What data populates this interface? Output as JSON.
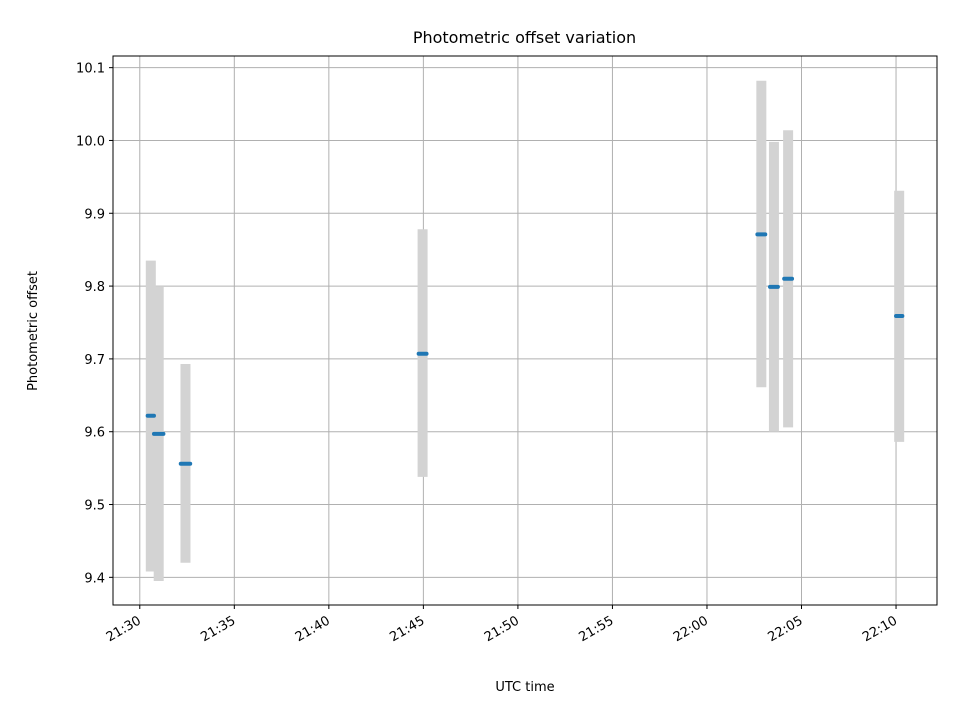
{
  "chart_data": {
    "type": "scatter",
    "title": "Photometric offset variation",
    "xlabel": "UTC time",
    "ylabel": "Photometric offset",
    "x_ticks": [
      "21:30",
      "21:35",
      "21:40",
      "21:45",
      "21:50",
      "21:55",
      "22:00",
      "22:05",
      "22:10"
    ],
    "y_ticks": [
      "9.4",
      "9.5",
      "9.6",
      "9.7",
      "9.8",
      "9.9",
      "10.0",
      "10.1"
    ],
    "xlim": [
      "21:28:35",
      "22:12:10"
    ],
    "ylim": [
      9.362,
      10.116
    ],
    "grid": true,
    "series": [
      {
        "color": "#1f77b4",
        "error_bar_color": "#d3d3d3",
        "points": [
          {
            "t_start": "21:30:25",
            "t_end": "21:30:45",
            "y": 9.622,
            "ylow": 9.408,
            "yhigh": 9.835
          },
          {
            "t_start": "21:30:45",
            "t_end": "21:31:15",
            "y": 9.597,
            "ylow": 9.395,
            "yhigh": 9.8
          },
          {
            "t_start": "21:32:10",
            "t_end": "21:32:40",
            "y": 9.556,
            "ylow": 9.42,
            "yhigh": 9.693
          },
          {
            "t_start": "21:44:45",
            "t_end": "21:45:10",
            "y": 9.707,
            "ylow": 9.538,
            "yhigh": 9.878
          },
          {
            "t_start": "22:02:40",
            "t_end": "22:03:05",
            "y": 9.871,
            "ylow": 9.661,
            "yhigh": 10.082
          },
          {
            "t_start": "22:03:20",
            "t_end": "22:03:45",
            "y": 9.799,
            "ylow": 9.6,
            "yhigh": 9.998
          },
          {
            "t_start": "22:04:05",
            "t_end": "22:04:30",
            "y": 9.81,
            "ylow": 9.606,
            "yhigh": 10.014
          },
          {
            "t_start": "22:10:00",
            "t_end": "22:10:20",
            "y": 9.759,
            "ylow": 9.586,
            "yhigh": 9.931
          }
        ]
      }
    ]
  }
}
